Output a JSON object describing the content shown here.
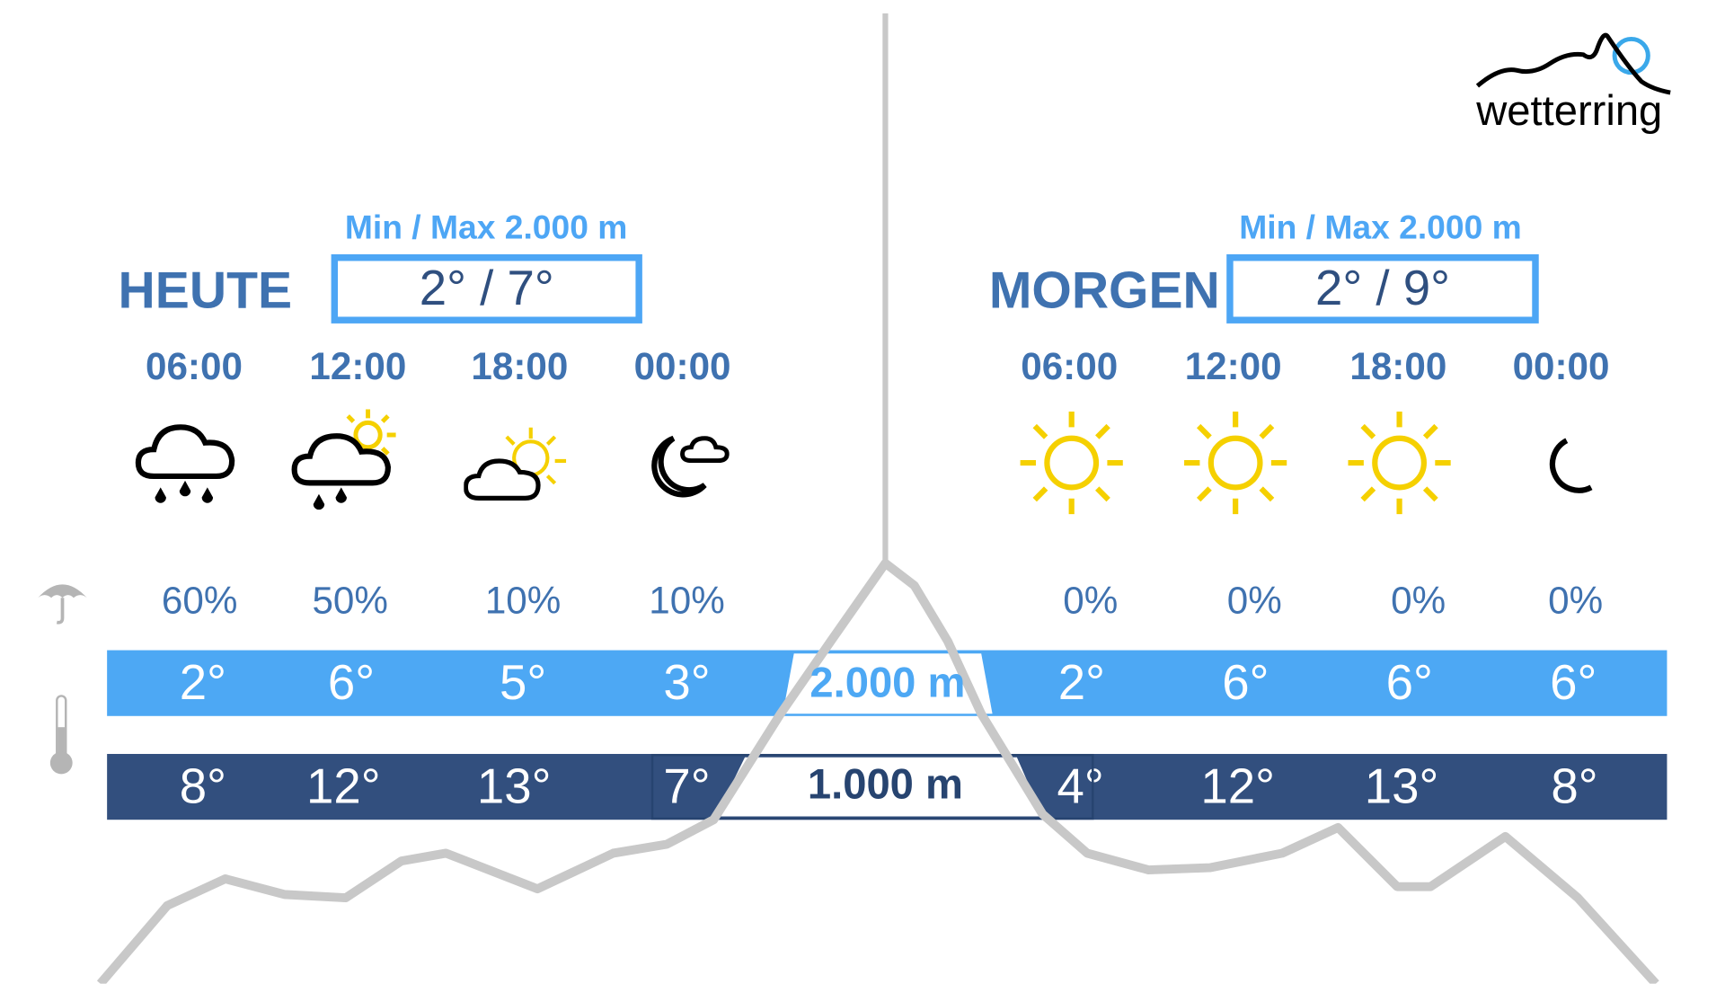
{
  "brand": {
    "name": "wetterring",
    "accent": "#4da6f5"
  },
  "today": {
    "label": "HEUTE",
    "minmax_label": "Min / Max 2.000 m",
    "minmax_value": "2° / 7°",
    "slots": [
      {
        "time": "06:00",
        "icon": "cloud-rain-icon",
        "precip": "60%",
        "temp_2000": "2°",
        "temp_1000": "8°"
      },
      {
        "time": "12:00",
        "icon": "sun-cloud-rain-icon",
        "precip": "50%",
        "temp_2000": "6°",
        "temp_1000": "12°"
      },
      {
        "time": "18:00",
        "icon": "sun-cloud-icon",
        "precip": "10%",
        "temp_2000": "5°",
        "temp_1000": "13°"
      },
      {
        "time": "00:00",
        "icon": "moon-cloud-icon",
        "precip": "10%",
        "temp_2000": "3°",
        "temp_1000": "7°"
      }
    ]
  },
  "tomorrow": {
    "label": "MORGEN",
    "minmax_label": "Min / Max 2.000 m",
    "minmax_value": "2° / 9°",
    "slots": [
      {
        "time": "06:00",
        "icon": "sun-icon",
        "precip": "0%",
        "temp_2000": "2°",
        "temp_1000": "4°"
      },
      {
        "time": "12:00",
        "icon": "sun-icon",
        "precip": "0%",
        "temp_2000": "6°",
        "temp_1000": "12°"
      },
      {
        "time": "18:00",
        "icon": "sun-icon",
        "precip": "0%",
        "temp_2000": "6°",
        "temp_1000": "13°"
      },
      {
        "time": "00:00",
        "icon": "moon-icon",
        "precip": "0%",
        "temp_2000": "6°",
        "temp_1000": "8°"
      }
    ]
  },
  "altitudes": {
    "high": "2.000 m",
    "low": "1.000 m"
  },
  "colors": {
    "bar_2000": "#4da8f4",
    "bar_1000": "#324f7e",
    "text": "#3f72b0",
    "sun": "#f5d000",
    "mountain": "#c8c8c8"
  }
}
